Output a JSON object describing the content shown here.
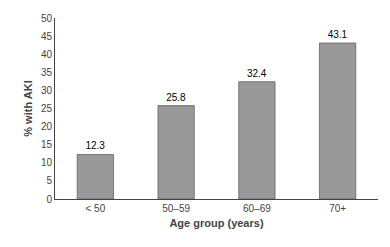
{
  "chart_data": {
    "type": "bar",
    "xlabel": "Age group (years)",
    "ylabel": "% with AKI",
    "categories": [
      "< 50",
      "50–59",
      "60–69",
      "70+"
    ],
    "values": [
      12.3,
      25.8,
      32.4,
      43.1
    ],
    "color": "#999999",
    "ylim": [
      0,
      50
    ],
    "yticks": [
      0,
      5,
      10,
      15,
      20,
      25,
      30,
      35,
      40,
      45,
      50
    ],
    "grid": false,
    "data_labels": true
  }
}
